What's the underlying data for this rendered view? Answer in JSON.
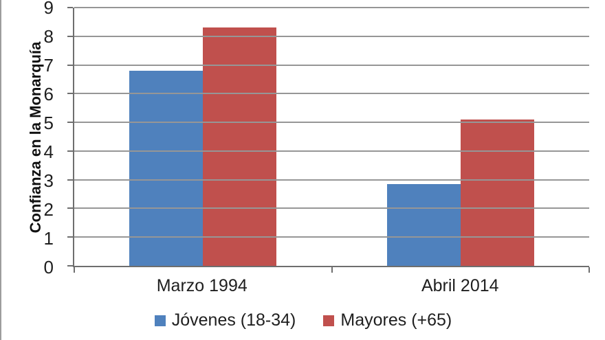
{
  "chart_data": {
    "type": "bar",
    "title": "",
    "ylabel": "Confianza en la Monarquía",
    "xlabel": "",
    "categories": [
      "Marzo 1994",
      "Abril 2014"
    ],
    "series": [
      {
        "name": "Jóvenes (18-34)",
        "color": "#4F81BD",
        "values": [
          6.8,
          2.85
        ]
      },
      {
        "name": "Mayores (+65)",
        "color": "#C0504D",
        "values": [
          8.3,
          5.1
        ]
      }
    ],
    "ylim": [
      0,
      9
    ],
    "ytick_step": 1,
    "grid": true,
    "legend_position": "bottom"
  },
  "colors": {
    "gridline": "#969696",
    "axis": "#6e6e6e",
    "text": "#1f1f1f"
  }
}
